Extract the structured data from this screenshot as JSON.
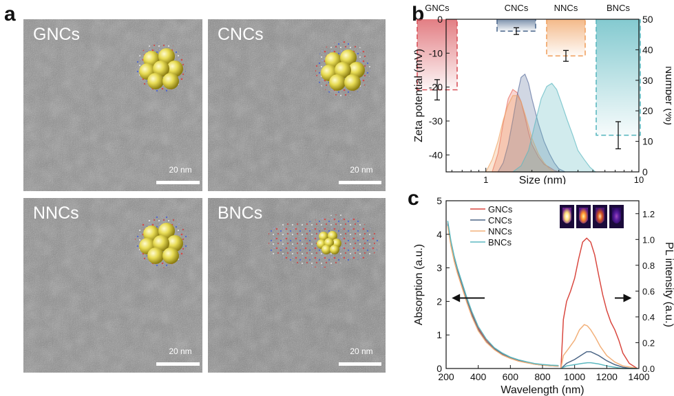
{
  "figure": {
    "panel_a_letter": "a",
    "panel_b_letter": "b",
    "panel_c_letter": "c"
  },
  "tem_panels": [
    {
      "label": "GNCs",
      "scale_label": "20 nm"
    },
    {
      "label": "CNCs",
      "scale_label": "20 nm"
    },
    {
      "label": "NNCs",
      "scale_label": "20 nm"
    },
    {
      "label": "BNCs",
      "scale_label": "20 nm"
    }
  ],
  "chart_data": [
    {
      "type": "bar",
      "title": "",
      "xlabel": "Size (nm)",
      "ylabel": "Zeta potential (mV)",
      "ylabel_right": "Number (%)",
      "x_scale": "log",
      "xlim": [
        0.55,
        10
      ],
      "xticks": [
        "1",
        "10"
      ],
      "ylim": [
        -45,
        0
      ],
      "yticks": [
        0,
        -10,
        -20,
        -30,
        -40
      ],
      "ylim_right": [
        0,
        50
      ],
      "yticks_right": [
        0,
        10,
        20,
        30,
        40,
        50
      ],
      "categories": [
        "GNCs",
        "CNCs",
        "NNCs",
        "BNCs"
      ],
      "values": [
        -20.8,
        -3.5,
        -10.8,
        -34.2
      ],
      "errors": [
        3.0,
        1.0,
        1.6,
        4.0
      ],
      "bar_colors": [
        "#d9535a",
        "#4f6b8f",
        "#f0a262",
        "#5bb8c0"
      ],
      "series": [
        {
          "name": "GNCs",
          "color": "#e86a5e",
          "x": [
            1.1,
            1.2,
            1.3,
            1.4,
            1.5,
            1.6,
            1.7,
            1.8,
            1.9,
            2.0,
            2.2,
            2.4,
            2.6,
            2.8,
            3.0
          ],
          "values": [
            0,
            6,
            16,
            24,
            27,
            26,
            23,
            18,
            13,
            9,
            5,
            2.5,
            1.5,
            0.5,
            0
          ]
        },
        {
          "name": "CNCs",
          "color": "#5a6e9c",
          "x": [
            1.2,
            1.3,
            1.4,
            1.5,
            1.6,
            1.7,
            1.8,
            1.9,
            2.0,
            2.2,
            2.4,
            2.6,
            2.8,
            3.0,
            3.3
          ],
          "values": [
            0,
            3,
            9,
            17,
            25,
            31,
            32,
            29,
            24,
            16,
            10,
            6,
            3,
            1,
            0
          ]
        },
        {
          "name": "NNCs",
          "color": "#f0a262",
          "x": [
            1.0,
            1.1,
            1.2,
            1.3,
            1.4,
            1.5,
            1.6,
            1.7,
            1.8,
            1.9,
            2.0,
            2.2,
            2.4,
            2.6,
            2.8
          ],
          "values": [
            0,
            4,
            10,
            17,
            22,
            25,
            25,
            23,
            19,
            15,
            11,
            6,
            3,
            1,
            0
          ]
        },
        {
          "name": "BNCs",
          "color": "#5bb8c0",
          "x": [
            1.5,
            1.7,
            1.9,
            2.1,
            2.3,
            2.5,
            2.7,
            2.9,
            3.1,
            3.4,
            3.7,
            4.0,
            4.4,
            4.8,
            5.2
          ],
          "values": [
            0,
            2,
            7,
            16,
            24,
            28,
            29,
            27,
            23,
            17,
            12,
            7,
            4,
            1.5,
            0
          ]
        }
      ]
    },
    {
      "type": "line",
      "title": "",
      "xlabel": "Wavelength (nm)",
      "ylabel": "Absorption (a.u.)",
      "ylabel_right": "PL intensity (a.u.)",
      "xlim": [
        200,
        1400
      ],
      "xticks": [
        200,
        400,
        600,
        800,
        1000,
        1200,
        1400
      ],
      "ylim": [
        0,
        5
      ],
      "yticks": [
        0,
        1,
        2,
        3,
        4,
        5
      ],
      "ylim_right": [
        0,
        1.3
      ],
      "yticks_right": [
        "0.0",
        "0.2",
        "0.4",
        "0.6",
        "0.8",
        "1.0",
        "1.2"
      ],
      "legend_position": "top-left",
      "series": [
        {
          "name": "GNCs",
          "color": "#d9473f",
          "absorption": {
            "x": [
              210,
              230,
              250,
              270,
              300,
              330,
              360,
              400,
              450,
              500,
              550,
              600,
              650,
              700,
              750,
              800,
              850,
              900
            ],
            "values": [
              4.35,
              3.75,
              3.3,
              2.95,
              2.5,
              2.05,
              1.65,
              1.2,
              0.85,
              0.6,
              0.45,
              0.33,
              0.25,
              0.19,
              0.14,
              0.11,
              0.09,
              0.08
            ]
          },
          "pl": {
            "x": [
              915,
              930,
              950,
              975,
              1000,
              1025,
              1050,
              1075,
              1100,
              1125,
              1150,
              1175,
              1200,
              1225,
              1250,
              1275,
              1300,
              1340,
              1390
            ],
            "values": [
              0.0,
              0.38,
              0.52,
              0.6,
              0.7,
              0.85,
              0.98,
              1.01,
              0.98,
              0.88,
              0.72,
              0.57,
              0.45,
              0.36,
              0.3,
              0.22,
              0.12,
              0.04,
              0.0
            ]
          }
        },
        {
          "name": "CNCs",
          "color": "#4b6585",
          "absorption": {
            "x": [
              210,
              230,
              250,
              270,
              300,
              330,
              360,
              400,
              450,
              500,
              550,
              600,
              650,
              700,
              750,
              800,
              850,
              900
            ],
            "values": [
              4.3,
              3.7,
              3.25,
              2.9,
              2.45,
              2.0,
              1.6,
              1.15,
              0.8,
              0.58,
              0.42,
              0.31,
              0.23,
              0.18,
              0.13,
              0.1,
              0.08,
              0.07
            ]
          },
          "pl": {
            "x": [
              915,
              950,
              1000,
              1050,
              1075,
              1100,
              1150,
              1200,
              1250,
              1300,
              1350,
              1390
            ],
            "values": [
              0.0,
              0.04,
              0.07,
              0.11,
              0.13,
              0.13,
              0.1,
              0.06,
              0.03,
              0.01,
              0.0,
              0.0
            ]
          }
        },
        {
          "name": "NNCs",
          "color": "#f2b07a",
          "absorption": {
            "x": [
              210,
              230,
              250,
              270,
              300,
              330,
              360,
              400,
              450,
              500,
              550,
              600,
              650,
              700,
              750,
              800,
              850,
              900
            ],
            "values": [
              4.25,
              3.65,
              3.2,
              2.85,
              2.4,
              1.95,
              1.55,
              1.12,
              0.78,
              0.56,
              0.4,
              0.3,
              0.22,
              0.17,
              0.13,
              0.1,
              0.08,
              0.07
            ]
          },
          "pl": {
            "x": [
              915,
              930,
              960,
              1000,
              1030,
              1060,
              1080,
              1100,
              1130,
              1160,
              1200,
              1250,
              1300,
              1350,
              1390
            ],
            "values": [
              0.0,
              0.1,
              0.15,
              0.22,
              0.3,
              0.34,
              0.33,
              0.3,
              0.24,
              0.17,
              0.1,
              0.05,
              0.02,
              0.01,
              0.0
            ]
          }
        },
        {
          "name": "BNCs",
          "color": "#5bb8c0",
          "absorption": {
            "x": [
              210,
              230,
              250,
              270,
              300,
              330,
              360,
              400,
              450,
              500,
              550,
              600,
              650,
              700,
              750,
              800,
              850,
              900
            ],
            "values": [
              4.4,
              3.8,
              3.35,
              3.0,
              2.55,
              2.1,
              1.7,
              1.25,
              0.88,
              0.62,
              0.46,
              0.34,
              0.26,
              0.2,
              0.15,
              0.12,
              0.1,
              0.09
            ]
          },
          "pl": {
            "x": [
              915,
              950,
              1000,
              1050,
              1080,
              1100,
              1150,
              1200,
              1250,
              1300,
              1390
            ],
            "values": [
              0.0,
              0.02,
              0.03,
              0.04,
              0.045,
              0.045,
              0.035,
              0.02,
              0.01,
              0.0,
              0.0
            ]
          }
        }
      ]
    }
  ]
}
